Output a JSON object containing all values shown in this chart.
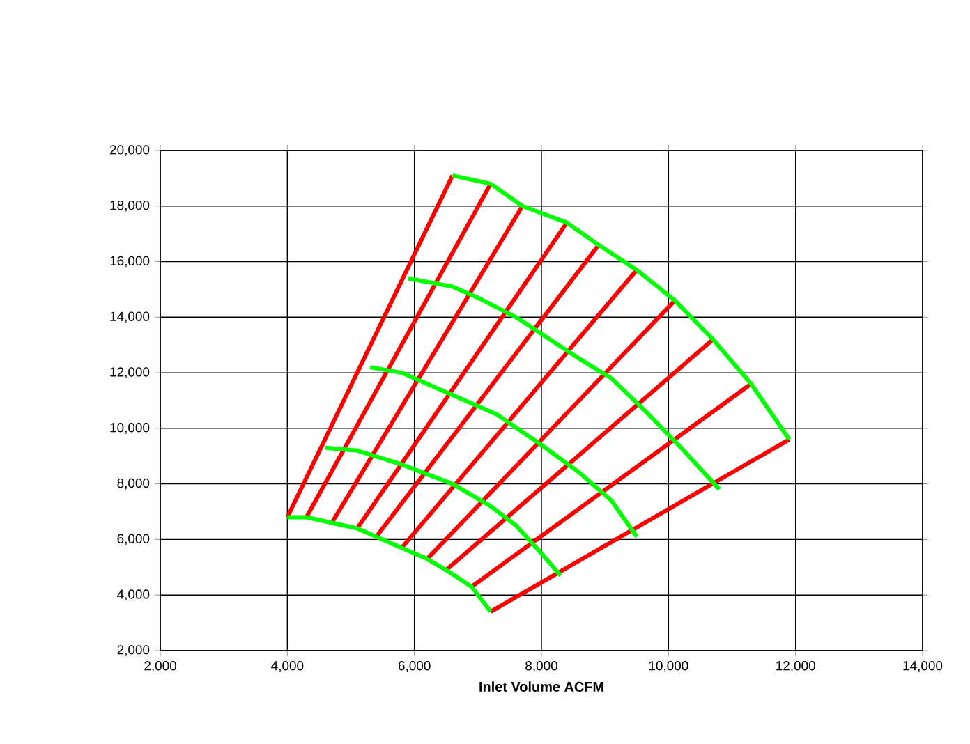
{
  "chart_data": {
    "type": "line",
    "xlabel": "Inlet Volume  ACFM",
    "xlim": [
      2000,
      14000
    ],
    "xticks": [
      {
        "value": 2000,
        "label": "2,000"
      },
      {
        "value": 4000,
        "label": "4,000"
      },
      {
        "value": 6000,
        "label": "6,000"
      },
      {
        "value": 8000,
        "label": "8,000"
      },
      {
        "value": 10000,
        "label": "10,000"
      },
      {
        "value": 12000,
        "label": "12,000"
      },
      {
        "value": 14000,
        "label": "14,000"
      }
    ],
    "ylim": [
      2000,
      20000
    ],
    "yticks": [
      {
        "value": 2000,
        "label": "2,000"
      },
      {
        "value": 4000,
        "label": "4,000"
      },
      {
        "value": 6000,
        "label": "6,000"
      },
      {
        "value": 8000,
        "label": "8,000"
      },
      {
        "value": 10000,
        "label": "10,000"
      },
      {
        "value": 12000,
        "label": "12,000"
      },
      {
        "value": 14000,
        "label": "14,000"
      },
      {
        "value": 16000,
        "label": "16,000"
      },
      {
        "value": 18000,
        "label": "18,000"
      },
      {
        "value": 20000,
        "label": "20,000"
      }
    ],
    "grid": true,
    "marker": "none",
    "line_style": "solid",
    "series": [
      {
        "color": "#ff0000",
        "x": [
          4000,
          6600
        ],
        "values": [
          6800,
          19100
        ]
      },
      {
        "color": "#ff0000",
        "x": [
          4300,
          7200
        ],
        "values": [
          6800,
          18800
        ]
      },
      {
        "color": "#ff0000",
        "x": [
          4700,
          7700
        ],
        "values": [
          6600,
          18000
        ]
      },
      {
        "color": "#ff0000",
        "x": [
          5100,
          8400
        ],
        "values": [
          6400,
          17400
        ]
      },
      {
        "color": "#ff0000",
        "x": [
          5400,
          8900
        ],
        "values": [
          6100,
          16600
        ]
      },
      {
        "color": "#ff0000",
        "x": [
          5800,
          9500
        ],
        "values": [
          5700,
          15700
        ]
      },
      {
        "color": "#ff0000",
        "x": [
          6200,
          10100
        ],
        "values": [
          5300,
          14600
        ]
      },
      {
        "color": "#ff0000",
        "x": [
          6500,
          10700
        ],
        "values": [
          4900,
          13200
        ]
      },
      {
        "color": "#ff0000",
        "x": [
          6900,
          11300
        ],
        "values": [
          4300,
          11600
        ]
      },
      {
        "color": "#ff0000",
        "x": [
          7200,
          11900
        ],
        "values": [
          3400,
          9600
        ]
      },
      {
        "color": "#00ff00",
        "x": [
          6600,
          7200,
          7700,
          8400,
          8900,
          9500,
          10100,
          10700,
          11300,
          11900
        ],
        "values": [
          19100,
          18800,
          18000,
          17400,
          16600,
          15700,
          14600,
          13200,
          11600,
          9600
        ]
      },
      {
        "color": "#00ff00",
        "x": [
          5900,
          6600,
          7000,
          7600,
          8000,
          8600,
          9100,
          9600,
          10200,
          10800
        ],
        "values": [
          15400,
          15100,
          14700,
          14000,
          13400,
          12500,
          11800,
          10700,
          9300,
          7800
        ]
      },
      {
        "color": "#00ff00",
        "x": [
          5300,
          5800,
          6600,
          7300,
          8000,
          8600,
          9100,
          9500
        ],
        "values": [
          12200,
          12000,
          11200,
          10500,
          9400,
          8400,
          7400,
          6100
        ]
      },
      {
        "color": "#00ff00",
        "x": [
          4600,
          5100,
          5800,
          6600,
          7200,
          7600,
          8000,
          8300
        ],
        "values": [
          9300,
          9200,
          8700,
          8000,
          7200,
          6500,
          5500,
          4700
        ]
      },
      {
        "color": "#00ff00",
        "x": [
          4000,
          4300,
          4700,
          5100,
          5400,
          5800,
          6200,
          6500,
          6900,
          7200
        ],
        "values": [
          6800,
          6800,
          6600,
          6400,
          6100,
          5700,
          5300,
          4900,
          4300,
          3400
        ]
      }
    ]
  }
}
